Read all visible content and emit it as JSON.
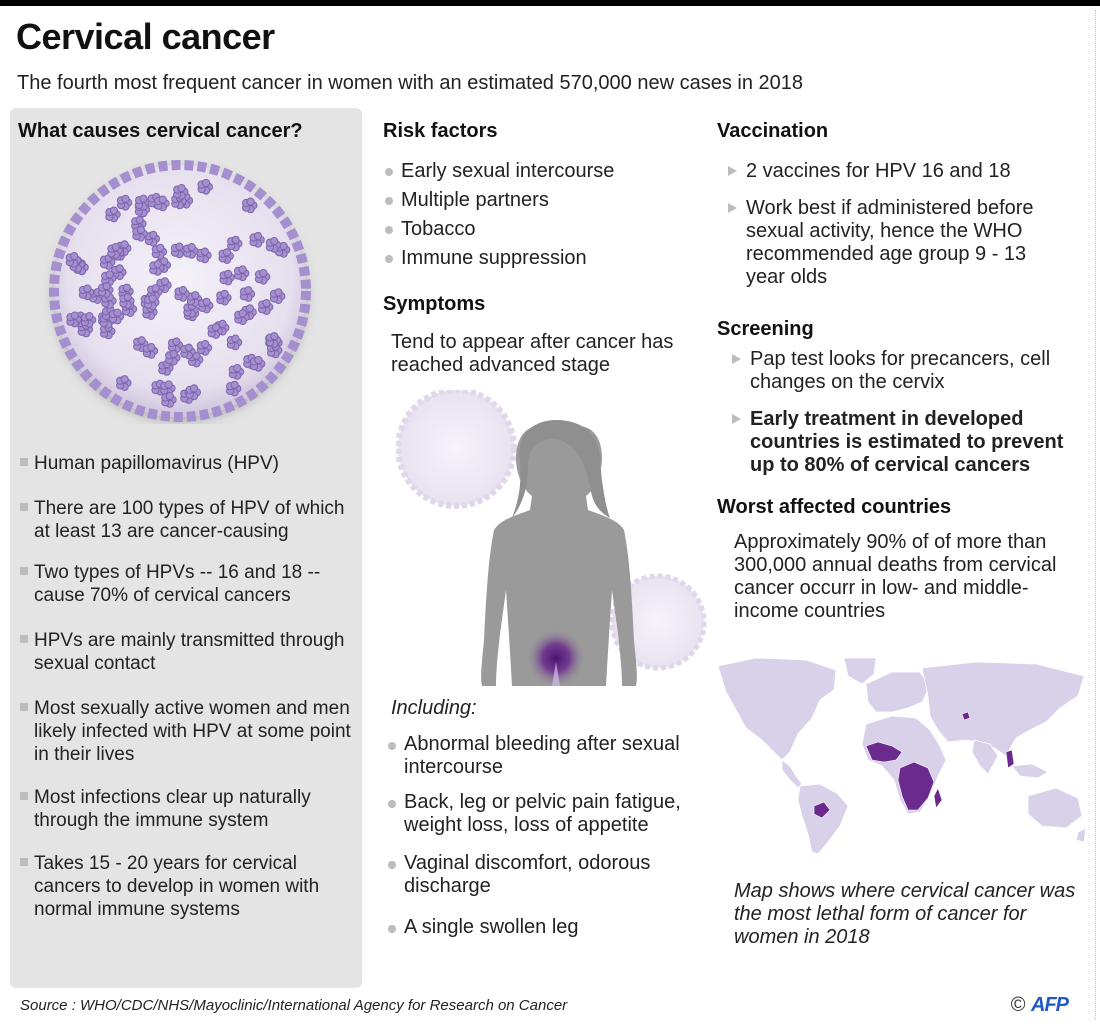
{
  "header": {
    "title": "Cervical cancer",
    "subtitle": "The fourth most frequent cancer in women with an estimated 570,000 new cases in 2018"
  },
  "causes": {
    "heading": "What causes cervical cancer?",
    "items": [
      "Human papillomavirus (HPV)",
      "There are 100 types of HPV of which at least 13 are cancer-causing",
      "Two types of HPVs -- 16 and 18 -- cause 70% of cervical cancers",
      "HPVs are mainly transmitted through sexual contact",
      "Most sexually active women and men likely infected with HPV at some point in their lives",
      "Most infections clear up naturally through the immune system",
      "Takes 15 - 20 years for cervical cancers to develop in women with normal immune systems"
    ]
  },
  "risk_factors": {
    "heading": "Risk factors",
    "items": [
      "Early sexual intercourse",
      "Multiple partners",
      "Tobacco",
      "Immune suppression"
    ]
  },
  "symptoms": {
    "heading": "Symptoms",
    "intro": "Tend to appear after cancer has reached advanced stage",
    "including_label": "Including:",
    "items": [
      "Abnormal bleeding after sexual intercourse",
      "Back, leg or pelvic pain fatigue, weight loss, loss of appetite",
      "Vaginal discomfort, odorous discharge",
      "A single swollen leg"
    ]
  },
  "vaccination": {
    "heading": "Vaccination",
    "items": [
      "2 vaccines for HPV 16 and 18",
      "Work best if administered before sexual activity, hence the WHO recommended age group 9 - 13 year olds"
    ]
  },
  "screening": {
    "heading": "Screening",
    "items": [
      "Pap test looks for precancers, cell changes on the cervix",
      "Early treatment in developed countries is estimated to prevent up to 80% of cervical cancers"
    ]
  },
  "worst_affected": {
    "heading": "Worst affected countries",
    "text": "Approximately 90% of of more than 300,000 annual deaths from cervical cancer occurr in low- and middle-income countries",
    "map_note": "Map shows where cervical cancer was the most lethal form of cancer for women in 2018"
  },
  "footer": {
    "source": "Source : WHO/CDC/NHS/Mayoclinic/International Agency for Research on Cancer",
    "copyright": "©",
    "brand": "AFP"
  },
  "colors": {
    "panel_bg": "#e4e4e4",
    "virus_purple": "#a58fcf",
    "land": "#d9d0ea",
    "highlight_country": "#6a2a8e",
    "silhouette": "#9a9a9a"
  }
}
